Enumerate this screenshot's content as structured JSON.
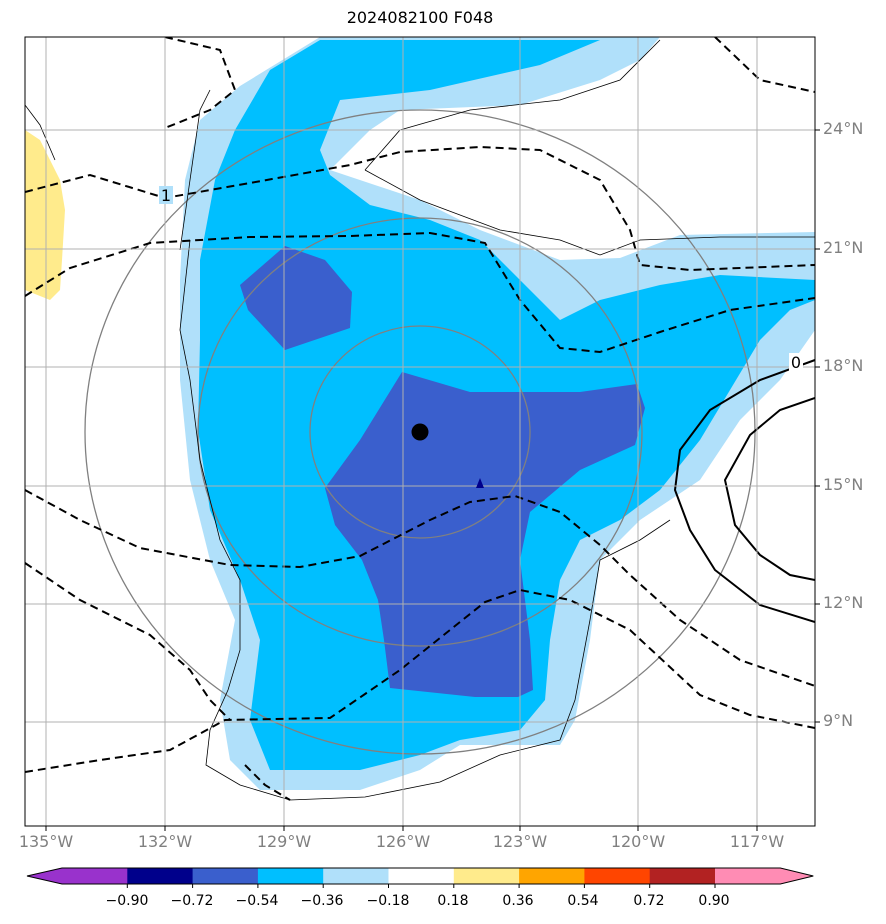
{
  "title": "2024082100 F048",
  "map": {
    "projection": "lat-lon",
    "lon_range": [
      -135.5,
      -115.5
    ],
    "lat_range": [
      6.1,
      26.3
    ],
    "grid": true,
    "fill_field": "shaded anomaly (negative values near storm)",
    "storm_center": {
      "lon": -125.6,
      "lat": 16.2,
      "marker": "black-dot"
    },
    "secondary_marker": {
      "lon": -124.0,
      "lat": 15.1,
      "marker": "small-blue-triangle"
    },
    "contour_labels": [
      "1",
      "0"
    ],
    "land_color": "#FFEB8C",
    "range_rings_color": "#808080"
  },
  "lon_labels": [
    "135°W",
    "132°W",
    "129°W",
    "126°W",
    "123°W",
    "120°W",
    "117°W"
  ],
  "lat_labels": [
    "24°N",
    "21°N",
    "18°N",
    "15°N",
    "12°N",
    "9°N"
  ],
  "colorbar": {
    "ticks": [
      "−0.90",
      "−0.72",
      "−0.54",
      "−0.36",
      "−0.18",
      "0.18",
      "0.36",
      "0.54",
      "0.72",
      "0.90"
    ],
    "colors": [
      "#9932CC",
      "#00008B",
      "#3A5FCD",
      "#00BFFF",
      "#B0E0FA",
      "#FFFFFF",
      "#FFEB8C",
      "#FFA500",
      "#FF4500",
      "#B22222",
      "#FF8CB4"
    ]
  },
  "contour_label_1": "1",
  "contour_label_0": "0"
}
